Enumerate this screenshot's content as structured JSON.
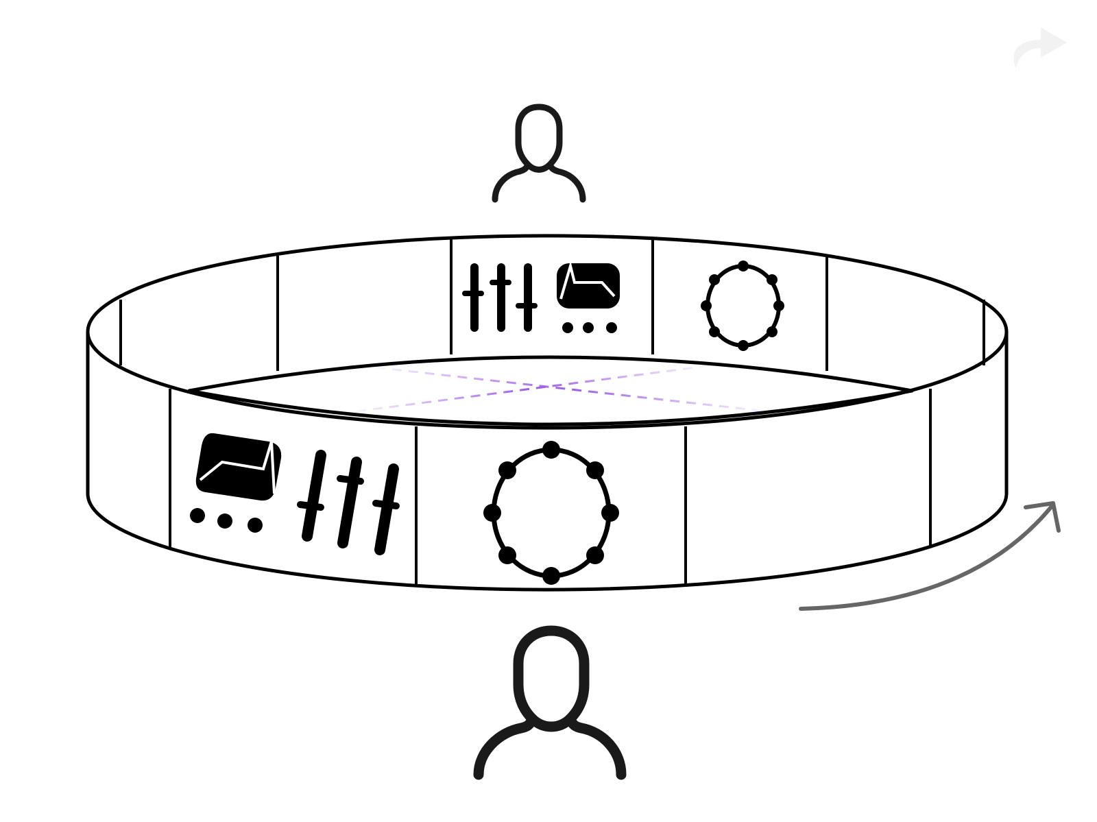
{
  "diagram": {
    "scene": "cylindrical-carousel",
    "colors": {
      "outline": "#000000",
      "axis": "#9b5de5",
      "rotate_arrow": "#666666",
      "redo_icon": "#f2f2f2",
      "person_near": "#1a1a1a",
      "person_far": "#1a1a1a",
      "background": "#ffffff"
    },
    "icons": [
      "sliders-icon",
      "chart-chat-icon",
      "dial-ring-icon",
      "person-icon",
      "rotate-arrow-icon",
      "redo-icon"
    ],
    "back_panel_icons": [
      "sliders-icon",
      "chart-chat-icon",
      "dial-ring-icon"
    ],
    "front_panel_icons": [
      "chart-chat-icon",
      "sliders-icon",
      "dial-ring-icon"
    ],
    "rotation_direction": "clockwise"
  }
}
